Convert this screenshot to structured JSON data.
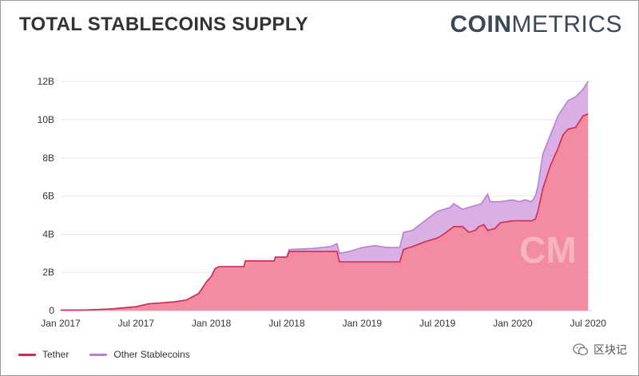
{
  "header": {
    "title": "TOTAL STABLECOINS SUPPLY",
    "brand_bold": "COIN",
    "brand_light": "METRICS"
  },
  "chart_data": {
    "type": "area",
    "title": "TOTAL STABLECOINS SUPPLY",
    "stacked": true,
    "x_unit": "months since Jan 2017",
    "x_ticks": [
      {
        "x": 0,
        "label": "Jan 2017"
      },
      {
        "x": 6,
        "label": "Jul 2017"
      },
      {
        "x": 12,
        "label": "Jan 2018"
      },
      {
        "x": 18,
        "label": "Jul 2018"
      },
      {
        "x": 24,
        "label": "Jan 2019"
      },
      {
        "x": 30,
        "label": "Jul 2019"
      },
      {
        "x": 36,
        "label": "Jan 2020"
      },
      {
        "x": 42,
        "label": "Jul 2020"
      }
    ],
    "y_ticks": [
      {
        "v": 0,
        "label": "0"
      },
      {
        "v": 2,
        "label": "2B"
      },
      {
        "v": 4,
        "label": "4B"
      },
      {
        "v": 6,
        "label": "6B"
      },
      {
        "v": 8,
        "label": "8B"
      },
      {
        "v": 10,
        "label": "10B"
      },
      {
        "v": 12,
        "label": "12B"
      }
    ],
    "xlim": [
      0,
      42.3
    ],
    "ylim": [
      0,
      12.8
    ],
    "series": [
      {
        "name": "Tether",
        "color": "#d9284f",
        "fill": "#f28ca0",
        "points": [
          [
            0,
            0.02
          ],
          [
            2,
            0.03
          ],
          [
            4,
            0.08
          ],
          [
            6,
            0.2
          ],
          [
            7,
            0.35
          ],
          [
            8,
            0.4
          ],
          [
            9,
            0.45
          ],
          [
            10,
            0.55
          ],
          [
            11,
            0.9
          ],
          [
            11.6,
            1.5
          ],
          [
            12,
            1.8
          ],
          [
            12.3,
            2.2
          ],
          [
            12.6,
            2.3
          ],
          [
            14,
            2.3
          ],
          [
            14.6,
            2.3
          ],
          [
            14.7,
            2.6
          ],
          [
            17,
            2.6
          ],
          [
            17.1,
            2.8
          ],
          [
            18,
            2.8
          ],
          [
            18.2,
            3.1
          ],
          [
            22,
            3.1
          ],
          [
            22.2,
            2.55
          ],
          [
            27,
            2.55
          ],
          [
            27.3,
            3.2
          ],
          [
            28,
            3.35
          ],
          [
            29,
            3.6
          ],
          [
            30,
            3.8
          ],
          [
            30.5,
            4.0
          ],
          [
            31.3,
            4.4
          ],
          [
            32,
            4.4
          ],
          [
            32.5,
            4.1
          ],
          [
            33,
            4.2
          ],
          [
            33.3,
            4.4
          ],
          [
            33.7,
            4.5
          ],
          [
            34,
            4.2
          ],
          [
            34.6,
            4.3
          ],
          [
            35,
            4.6
          ],
          [
            36,
            4.7
          ],
          [
            37,
            4.7
          ],
          [
            37.5,
            4.7
          ],
          [
            37.8,
            4.8
          ],
          [
            38,
            5.2
          ],
          [
            38.4,
            6.4
          ],
          [
            39,
            7.6
          ],
          [
            39.6,
            8.5
          ],
          [
            40,
            9.2
          ],
          [
            40.4,
            9.5
          ],
          [
            41,
            9.6
          ],
          [
            41.6,
            10.2
          ],
          [
            42,
            10.3
          ]
        ]
      },
      {
        "name": "Other Stablecoins",
        "color": "#b97fd6",
        "fill": "#d9afe4",
        "points": [
          [
            0,
            0.02
          ],
          [
            2,
            0.03
          ],
          [
            4,
            0.08
          ],
          [
            6,
            0.2
          ],
          [
            7,
            0.35
          ],
          [
            8,
            0.4
          ],
          [
            9,
            0.45
          ],
          [
            10,
            0.55
          ],
          [
            11,
            0.9
          ],
          [
            11.6,
            1.5
          ],
          [
            12,
            1.8
          ],
          [
            12.3,
            2.2
          ],
          [
            12.6,
            2.3
          ],
          [
            14,
            2.3
          ],
          [
            14.6,
            2.3
          ],
          [
            14.7,
            2.6
          ],
          [
            17,
            2.6
          ],
          [
            17.1,
            2.8
          ],
          [
            18,
            2.8
          ],
          [
            18.2,
            3.2
          ],
          [
            20,
            3.25
          ],
          [
            21.5,
            3.35
          ],
          [
            22,
            3.5
          ],
          [
            22.2,
            3.0
          ],
          [
            23,
            3.1
          ],
          [
            24,
            3.3
          ],
          [
            25,
            3.4
          ],
          [
            26,
            3.3
          ],
          [
            27,
            3.3
          ],
          [
            27.3,
            4.1
          ],
          [
            28,
            4.2
          ],
          [
            29,
            4.7
          ],
          [
            30,
            5.2
          ],
          [
            31,
            5.4
          ],
          [
            31.3,
            5.6
          ],
          [
            32,
            5.3
          ],
          [
            33,
            5.5
          ],
          [
            33.5,
            5.6
          ],
          [
            34,
            6.1
          ],
          [
            34.2,
            5.7
          ],
          [
            35,
            5.7
          ],
          [
            36,
            5.8
          ],
          [
            36.5,
            5.7
          ],
          [
            37,
            5.8
          ],
          [
            37.5,
            5.7
          ],
          [
            37.8,
            6.0
          ],
          [
            38,
            6.5
          ],
          [
            38.4,
            8.2
          ],
          [
            39,
            9.2
          ],
          [
            39.6,
            10.2
          ],
          [
            40,
            10.6
          ],
          [
            40.4,
            11.0
          ],
          [
            41,
            11.2
          ],
          [
            41.6,
            11.6
          ],
          [
            42,
            12.0
          ]
        ]
      }
    ],
    "watermark": "CM",
    "legend_position": "bottom-left"
  },
  "legend": [
    {
      "label": "Tether",
      "color": "#d9284f"
    },
    {
      "label": "Other Stablecoins",
      "color": "#b97fd6"
    }
  ],
  "footer": {
    "watermark_text": "区块记"
  }
}
